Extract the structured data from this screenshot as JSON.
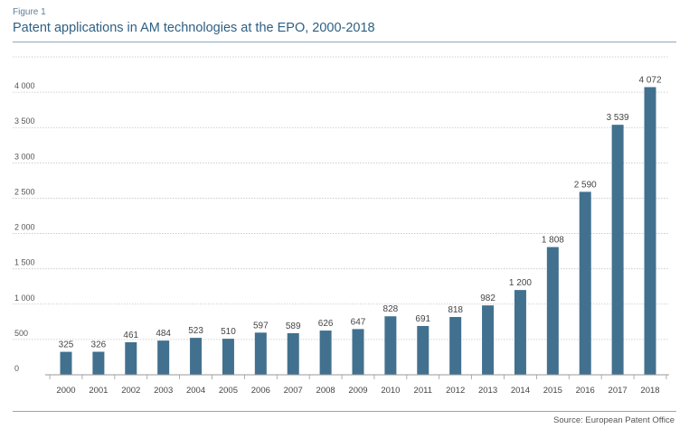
{
  "figure_label": "Figure 1",
  "source": "Source: European Patent Office",
  "colors": {
    "bar": "#42718f",
    "title": "#2e5f82",
    "grid": "#c4c4c4"
  },
  "chart_data": {
    "type": "bar",
    "title": "Patent applications in AM technologies at the EPO, 2000-2018",
    "xlabel": "",
    "ylabel": "",
    "ylim": [
      0,
      4500
    ],
    "yticks": [
      0,
      500,
      1000,
      1500,
      2000,
      2500,
      3000,
      3500,
      4000
    ],
    "ytick_labels": [
      "0",
      "500",
      "1 000",
      "1 500",
      "2 000",
      "2 500",
      "3 000",
      "3 500",
      "4 000"
    ],
    "grid": true,
    "categories": [
      "2000",
      "2001",
      "2002",
      "2003",
      "2004",
      "2005",
      "2006",
      "2007",
      "2008",
      "2009",
      "2010",
      "2011",
      "2012",
      "2013",
      "2014",
      "2015",
      "2016",
      "2017",
      "2018"
    ],
    "values": [
      325,
      326,
      461,
      484,
      523,
      510,
      597,
      589,
      626,
      647,
      828,
      691,
      818,
      982,
      1200,
      1808,
      2590,
      3539,
      4072
    ],
    "value_labels": [
      "325",
      "326",
      "461",
      "484",
      "523",
      "510",
      "597",
      "589",
      "626",
      "647",
      "828",
      "691",
      "818",
      "982",
      "1 200",
      "1 808",
      "2 590",
      "3 539",
      "4 072"
    ]
  }
}
